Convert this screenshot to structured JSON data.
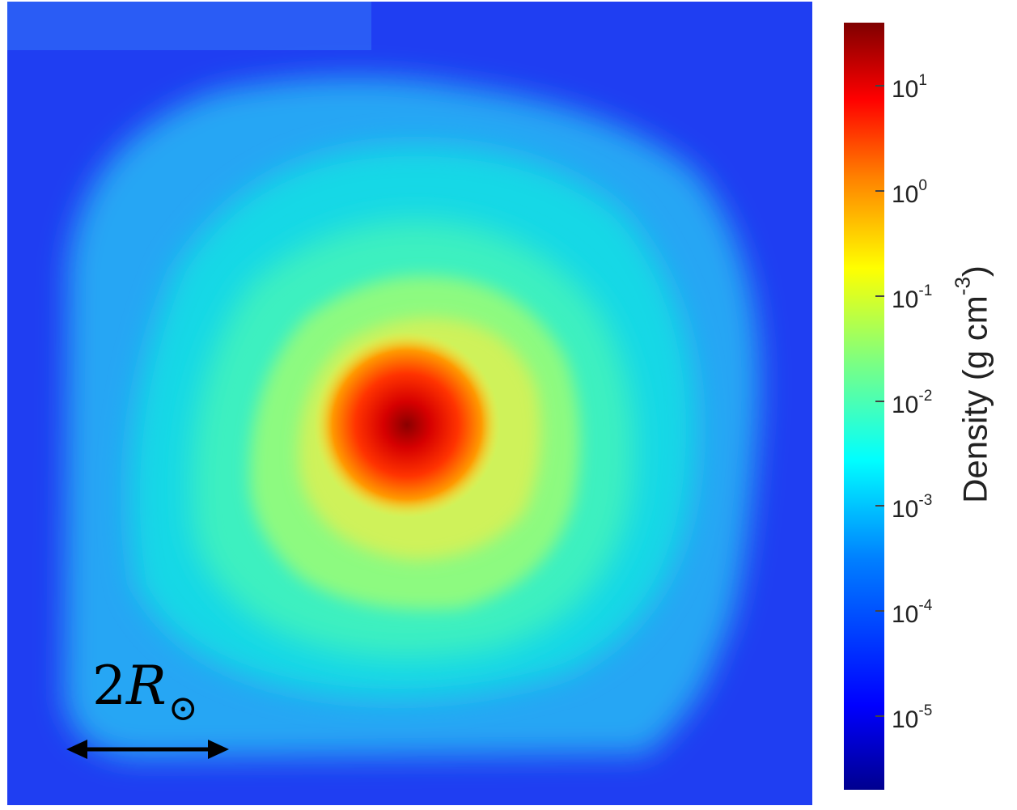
{
  "chart_data": {
    "type": "heatmap",
    "title": "",
    "quantity": "Density",
    "scale": "log",
    "colormap": "jet",
    "colorbar": {
      "label_main": "Density (g cm",
      "label_exp": "-3",
      "label_tail": ")",
      "range_log10": [
        -5.7,
        1.6
      ],
      "ticks": [
        {
          "base": "10",
          "exp": "1",
          "log10": 1
        },
        {
          "base": "10",
          "exp": "0",
          "log10": 0
        },
        {
          "base": "10",
          "exp": "-1",
          "log10": -1
        },
        {
          "base": "10",
          "exp": "-2",
          "log10": -2
        },
        {
          "base": "10",
          "exp": "-3",
          "log10": -3
        },
        {
          "base": "10",
          "exp": "-4",
          "log10": -4
        },
        {
          "base": "10",
          "exp": "-5",
          "log10": -5
        }
      ]
    },
    "field_description_log10": {
      "center_peak": 1.6,
      "background": -4.6,
      "inner_core_edge": -1.0,
      "envelope": -2.5,
      "outer_halo": -3.5
    },
    "scale_bar": {
      "number": "2",
      "symbol": "R",
      "subscript": "⊙"
    }
  }
}
